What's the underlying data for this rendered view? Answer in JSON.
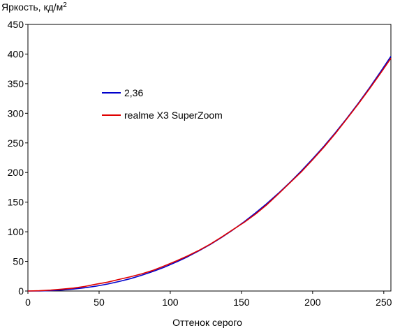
{
  "chart_data": {
    "type": "line",
    "ylabel": "Яркость, кд/м",
    "ylabel_sup": "2",
    "xlabel": "Оттенок серого",
    "xlim": [
      0,
      255
    ],
    "ylim": [
      0,
      450
    ],
    "xticks": [
      0,
      50,
      100,
      150,
      200,
      250
    ],
    "yticks": [
      0,
      50,
      100,
      150,
      200,
      250,
      300,
      350,
      400,
      450
    ],
    "grid": false,
    "legend_position": "upper-left",
    "series": [
      {
        "name": "2,36",
        "color": "#0000cc",
        "x": [
          0,
          8,
          16,
          24,
          32,
          40,
          48,
          56,
          64,
          72,
          80,
          88,
          96,
          104,
          112,
          120,
          128,
          136,
          144,
          152,
          160,
          168,
          176,
          184,
          192,
          200,
          208,
          216,
          224,
          232,
          240,
          248,
          255
        ],
        "y": [
          0,
          0.1,
          0.7,
          1.7,
          3.3,
          5.5,
          8.3,
          11.8,
          16.0,
          20.9,
          26.6,
          33.1,
          40.4,
          48.6,
          57.6,
          67.6,
          78.5,
          90.3,
          103.2,
          117.1,
          132.0,
          148.0,
          165.0,
          183.2,
          202.5,
          223.0,
          244.6,
          267.4,
          291.4,
          316.6,
          343.1,
          370.9,
          396.2
        ]
      },
      {
        "name": "realme X3 SuperZoom",
        "color": "#e00000",
        "x": [
          0,
          8,
          16,
          24,
          32,
          40,
          48,
          56,
          64,
          72,
          80,
          88,
          96,
          104,
          112,
          120,
          128,
          136,
          144,
          152,
          160,
          168,
          176,
          184,
          192,
          200,
          208,
          216,
          224,
          232,
          240,
          248,
          255
        ],
        "y": [
          0,
          0.5,
          1.5,
          3.2,
          5.0,
          7.8,
          11.5,
          15.0,
          19.5,
          24.0,
          29.0,
          35.0,
          42.5,
          50.5,
          59.0,
          68.5,
          79.0,
          91.0,
          103.5,
          116.0,
          130.0,
          146.0,
          164.0,
          182.5,
          201.0,
          221.5,
          243.0,
          266.0,
          290.5,
          315.5,
          341.5,
          368.5,
          393.0
        ]
      }
    ]
  }
}
